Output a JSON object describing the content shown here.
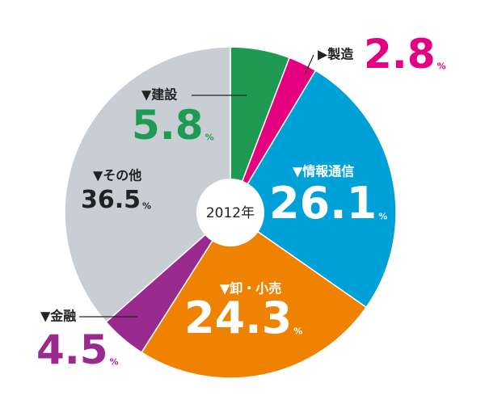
{
  "chart_data": {
    "type": "donut",
    "center_label": "2012年",
    "categories": [
      "▼建設",
      "▶製造",
      "▼情報通信",
      "▼卸・小売",
      "▼金融",
      "▼その他"
    ],
    "values": [
      5.8,
      2.8,
      26.1,
      24.3,
      4.5,
      36.5
    ],
    "unit": "%",
    "colors": [
      "#1f9a52",
      "#e4007f",
      "#00a0d9",
      "#ef8200",
      "#9b2a8e",
      "#c8ced4"
    ]
  }
}
